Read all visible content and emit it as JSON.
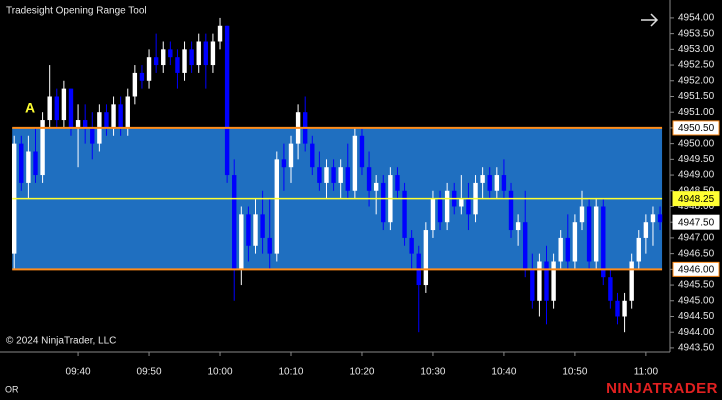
{
  "chart_data": {
    "type": "candlestick",
    "title": "Tradesight Opening Range Tool",
    "copyright": "© 2024 NinjaTrader, LLC",
    "indicator_tag": "OR",
    "brand": "NINJATRADER",
    "annotation": "A",
    "x": [
      571,
      572,
      573,
      574,
      575,
      576,
      577,
      578,
      579,
      580,
      581,
      582,
      583,
      584,
      585,
      586,
      587,
      588,
      589,
      590,
      591,
      592,
      593,
      594,
      595,
      596,
      597,
      598,
      599,
      600,
      601,
      602,
      603,
      604,
      605,
      606,
      607,
      608,
      609,
      610,
      611,
      612,
      613,
      614,
      615,
      616,
      617,
      618,
      619,
      620,
      621,
      622,
      623,
      624,
      625,
      626,
      627,
      628,
      629,
      630,
      631,
      632,
      633,
      634,
      635,
      636,
      637,
      638,
      639,
      640,
      641,
      642,
      643,
      644,
      645,
      646,
      647,
      648,
      649,
      650,
      651,
      652,
      653,
      654,
      655,
      656,
      657,
      658,
      659,
      660,
      661,
      662
    ],
    "ohlc": [
      [
        4946.5,
        4950.25,
        4946,
        4950
      ],
      [
        4950,
        4950.25,
        4948.5,
        4948.75
      ],
      [
        4948.75,
        4950.25,
        4948.25,
        4949.75
      ],
      [
        4949.75,
        4950.5,
        4948.75,
        4949
      ],
      [
        4949,
        4951,
        4948.75,
        4950.75
      ],
      [
        4950.75,
        4952.5,
        4950.5,
        4951.5
      ],
      [
        4951.5,
        4951.75,
        4950.5,
        4950.75
      ],
      [
        4950.75,
        4952,
        4950.5,
        4951.75
      ],
      [
        4951.75,
        4951.75,
        4950.25,
        4950.5
      ],
      [
        4950.5,
        4951.25,
        4949.25,
        4950.75
      ],
      [
        4950.75,
        4951.25,
        4950,
        4950.5
      ],
      [
        4950.5,
        4951,
        4949.5,
        4950
      ],
      [
        4950,
        4951.25,
        4949.75,
        4951
      ],
      [
        4951,
        4951.25,
        4950.25,
        4950.5
      ],
      [
        4950.5,
        4951.5,
        4950.25,
        4951.25
      ],
      [
        4951.25,
        4951.5,
        4950.25,
        4950.5
      ],
      [
        4950.5,
        4951.75,
        4950.25,
        4951.5
      ],
      [
        4951.5,
        4952.5,
        4951.25,
        4952.25
      ],
      [
        4952.25,
        4952.5,
        4951.75,
        4952
      ],
      [
        4952,
        4953,
        4951.75,
        4952.75
      ],
      [
        4952.75,
        4953.5,
        4952.25,
        4952.5
      ],
      [
        4952.5,
        4953.25,
        4952.25,
        4953
      ],
      [
        4953,
        4953.25,
        4952.5,
        4952.75
      ],
      [
        4952.75,
        4953,
        4951.75,
        4952.25
      ],
      [
        4952.25,
        4953.25,
        4952,
        4953
      ],
      [
        4953,
        4953.25,
        4952.25,
        4952.5
      ],
      [
        4952.5,
        4953.5,
        4952.25,
        4953.25
      ],
      [
        4953.25,
        4953.5,
        4951.75,
        4952.5
      ],
      [
        4952.5,
        4953.5,
        4952.25,
        4953.25
      ],
      [
        4953.25,
        4954,
        4953,
        4953.75
      ],
      [
        4953.75,
        4953.75,
        4948.75,
        4949
      ],
      [
        4949,
        4949.5,
        4945,
        4946
      ],
      [
        4946,
        4948,
        4945.5,
        4947.75
      ],
      [
        4947.75,
        4948,
        4946.25,
        4946.75
      ],
      [
        4946.75,
        4948.25,
        4946.5,
        4947.75
      ],
      [
        4947.75,
        4948.5,
        4946.5,
        4947
      ],
      [
        4947,
        4948.25,
        4946,
        4946.5
      ],
      [
        4946.5,
        4949.75,
        4946.25,
        4949.5
      ],
      [
        4949.5,
        4950,
        4948.5,
        4949.25
      ],
      [
        4949.25,
        4950.25,
        4948.75,
        4950
      ],
      [
        4950,
        4951.25,
        4949.5,
        4951
      ],
      [
        4951,
        4951.5,
        4949.75,
        4950
      ],
      [
        4950,
        4950.25,
        4949,
        4949.25
      ],
      [
        4949.25,
        4949.75,
        4948.5,
        4948.75
      ],
      [
        4948.75,
        4949.5,
        4948.25,
        4949.25
      ],
      [
        4949.25,
        4949.5,
        4948.5,
        4948.75
      ],
      [
        4948.75,
        4949.5,
        4948.25,
        4949.25
      ],
      [
        4949.25,
        4950,
        4948.25,
        4948.5
      ],
      [
        4948.5,
        4950.5,
        4948.25,
        4950.25
      ],
      [
        4950.25,
        4950.5,
        4949,
        4949.25
      ],
      [
        4949.25,
        4949.75,
        4948,
        4948.5
      ],
      [
        4948.5,
        4949,
        4947.75,
        4948.75
      ],
      [
        4948.75,
        4949,
        4947.25,
        4947.5
      ],
      [
        4947.5,
        4949.25,
        4947.25,
        4949
      ],
      [
        4949,
        4949.25,
        4948.25,
        4948.5
      ],
      [
        4948.5,
        4948.75,
        4946.75,
        4947
      ],
      [
        4947,
        4947.25,
        4946,
        4946.5
      ],
      [
        4946.5,
        4946.75,
        4944,
        4945.5
      ],
      [
        4945.5,
        4947.5,
        4945.25,
        4947.25
      ],
      [
        4947.25,
        4948.5,
        4947,
        4948.25
      ],
      [
        4948.25,
        4948.5,
        4947.25,
        4947.5
      ],
      [
        4947.5,
        4948.75,
        4947.25,
        4948.5
      ],
      [
        4948.5,
        4948.75,
        4947.75,
        4948
      ],
      [
        4948,
        4949,
        4947.75,
        4948.25
      ],
      [
        4948.25,
        4948.75,
        4947.25,
        4947.75
      ],
      [
        4947.75,
        4949,
        4947.5,
        4948.75
      ],
      [
        4948.75,
        4949.25,
        4948.25,
        4949
      ],
      [
        4949,
        4949.25,
        4948.25,
        4948.5
      ],
      [
        4948.5,
        4949.25,
        4948.25,
        4949
      ],
      [
        4949,
        4949.5,
        4948.25,
        4948.5
      ],
      [
        4948.5,
        4948.75,
        4947,
        4947.25
      ],
      [
        4947.25,
        4947.75,
        4946.75,
        4947.5
      ],
      [
        4947.5,
        4948.5,
        4945.75,
        4946
      ],
      [
        4946,
        4946.5,
        4944.75,
        4945
      ],
      [
        4945,
        4946.5,
        4944.5,
        4946.25
      ],
      [
        4946.25,
        4946.75,
        4944.25,
        4945
      ],
      [
        4945,
        4946.5,
        4944.75,
        4946.25
      ],
      [
        4946.25,
        4947.25,
        4946,
        4947
      ],
      [
        4947,
        4947.75,
        4946,
        4946.25
      ],
      [
        4946.25,
        4947.75,
        4946,
        4947.5
      ],
      [
        4947.5,
        4948.5,
        4947.25,
        4948
      ],
      [
        4948,
        4948.25,
        4946,
        4946.25
      ],
      [
        4946.25,
        4948.25,
        4946,
        4948
      ],
      [
        4948,
        4948.25,
        4945.5,
        4945.75
      ],
      [
        4945.75,
        4946,
        4944.75,
        4945
      ],
      [
        4945,
        4945.25,
        4944.25,
        4944.5
      ],
      [
        4944.5,
        4945.25,
        4944,
        4945
      ],
      [
        4945,
        4946.5,
        4944.75,
        4946.25
      ],
      [
        4946.25,
        4947.25,
        4946,
        4947
      ],
      [
        4947,
        4947.75,
        4946.5,
        4947.5
      ],
      [
        4947.5,
        4948,
        4946.75,
        4947.75
      ],
      [
        4947.75,
        4948,
        4947.25,
        4947.5
      ]
    ],
    "up_color": "#ffffff",
    "down_color": "#0000ff",
    "range_fill": "#1f6fc0",
    "range_line_color": "#ff8c1a",
    "mid_line_color": "#ffff33",
    "range_high": {
      "value": 4950.5,
      "label": "4950.50"
    },
    "range_mid": {
      "value": 4948.25,
      "label": "4948.25"
    },
    "range_low": {
      "value": 4946,
      "label": "4946.00"
    },
    "last_price": {
      "value": 4947.5,
      "label": "4947.50"
    },
    "xlim": [
      569.0,
      663.4
    ],
    "ylim": [
      4943.37,
      4954.57
    ],
    "xticks": [
      {
        "value": 580,
        "label": "09:40"
      },
      {
        "value": 590,
        "label": "09:50"
      },
      {
        "value": 600,
        "label": "10:00"
      },
      {
        "value": 610,
        "label": "10:10"
      },
      {
        "value": 620,
        "label": "10:20"
      },
      {
        "value": 630,
        "label": "10:30"
      },
      {
        "value": 640,
        "label": "10:40"
      },
      {
        "value": 650,
        "label": "10:50"
      },
      {
        "value": 660,
        "label": "11:00"
      }
    ],
    "yticks": [
      {
        "value": 4943.5,
        "label": "4943.50"
      },
      {
        "value": 4944,
        "label": "4944.00"
      },
      {
        "value": 4944.5,
        "label": "4944.50"
      },
      {
        "value": 4945,
        "label": "4945.00"
      },
      {
        "value": 4945.5,
        "label": "4945.50"
      },
      {
        "value": 4946,
        "label": "4946.00"
      },
      {
        "value": 4946.5,
        "label": "4946.50"
      },
      {
        "value": 4947,
        "label": "4947.00"
      },
      {
        "value": 4947.5,
        "label": "4947.50"
      },
      {
        "value": 4948,
        "label": "4948.00"
      },
      {
        "value": 4948.5,
        "label": "4948.50"
      },
      {
        "value": 4949,
        "label": "4949.00"
      },
      {
        "value": 4949.5,
        "label": "4949.50"
      },
      {
        "value": 4950,
        "label": "4950.00"
      },
      {
        "value": 4950.5,
        "label": "4950.50"
      },
      {
        "value": 4951,
        "label": "4951.00"
      },
      {
        "value": 4951.5,
        "label": "4951.50"
      },
      {
        "value": 4952,
        "label": "4952.00"
      },
      {
        "value": 4952.5,
        "label": "4952.50"
      },
      {
        "value": 4953,
        "label": "4953.00"
      },
      {
        "value": 4953.5,
        "label": "4953.50"
      },
      {
        "value": 4954,
        "label": "4954.00"
      }
    ]
  }
}
